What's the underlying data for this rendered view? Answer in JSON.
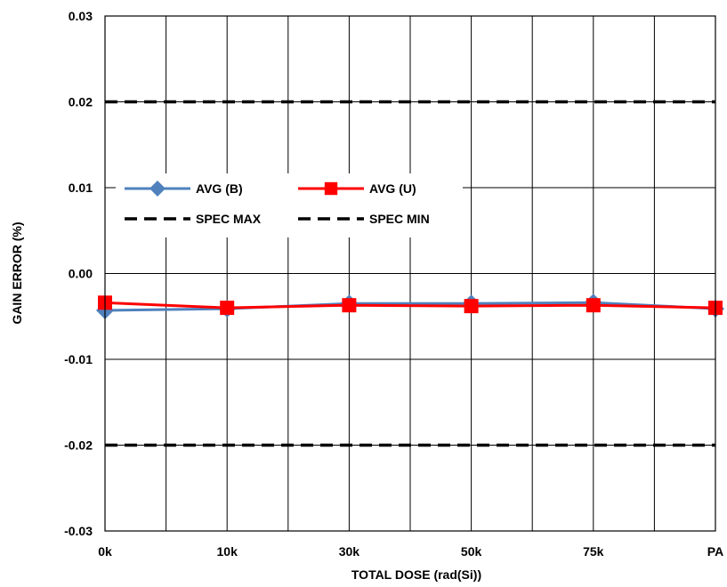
{
  "chart_data": {
    "type": "line",
    "title": "",
    "xlabel": "TOTAL DOSE (rad(Si))",
    "ylabel": "GAIN ERROR (%)",
    "categories": [
      "0k",
      "10k",
      "30k",
      "50k",
      "75k",
      "PA"
    ],
    "ylim": [
      -0.03,
      0.03
    ],
    "yticks": [
      0.03,
      0.02,
      0.01,
      0.0,
      -0.01,
      -0.02,
      -0.03
    ],
    "ytick_labels": [
      "0.03",
      "0.02",
      "0.01",
      "0.00",
      "-0.01",
      "-0.02",
      "-0.03"
    ],
    "grid": true,
    "legend_position": "upper-left",
    "series": [
      {
        "name": "AVG (B)",
        "values": [
          -0.0043,
          -0.0041,
          -0.0035,
          -0.0035,
          -0.0034,
          -0.0041
        ],
        "color": "#4f81bd",
        "marker": "diamond",
        "line": "solid"
      },
      {
        "name": "AVG (U)",
        "values": [
          -0.0034,
          -0.004,
          -0.0037,
          -0.0038,
          -0.0037,
          -0.004
        ],
        "color": "#ff0000",
        "marker": "square",
        "line": "solid"
      },
      {
        "name": "SPEC MAX",
        "values": [
          0.02,
          0.02,
          0.02,
          0.02,
          0.02,
          0.02
        ],
        "color": "#000000",
        "marker": "none",
        "line": "dashed"
      },
      {
        "name": "SPEC MIN",
        "values": [
          -0.02,
          -0.02,
          -0.02,
          -0.02,
          -0.02,
          -0.02
        ],
        "color": "#000000",
        "marker": "none",
        "line": "dashed"
      }
    ]
  }
}
